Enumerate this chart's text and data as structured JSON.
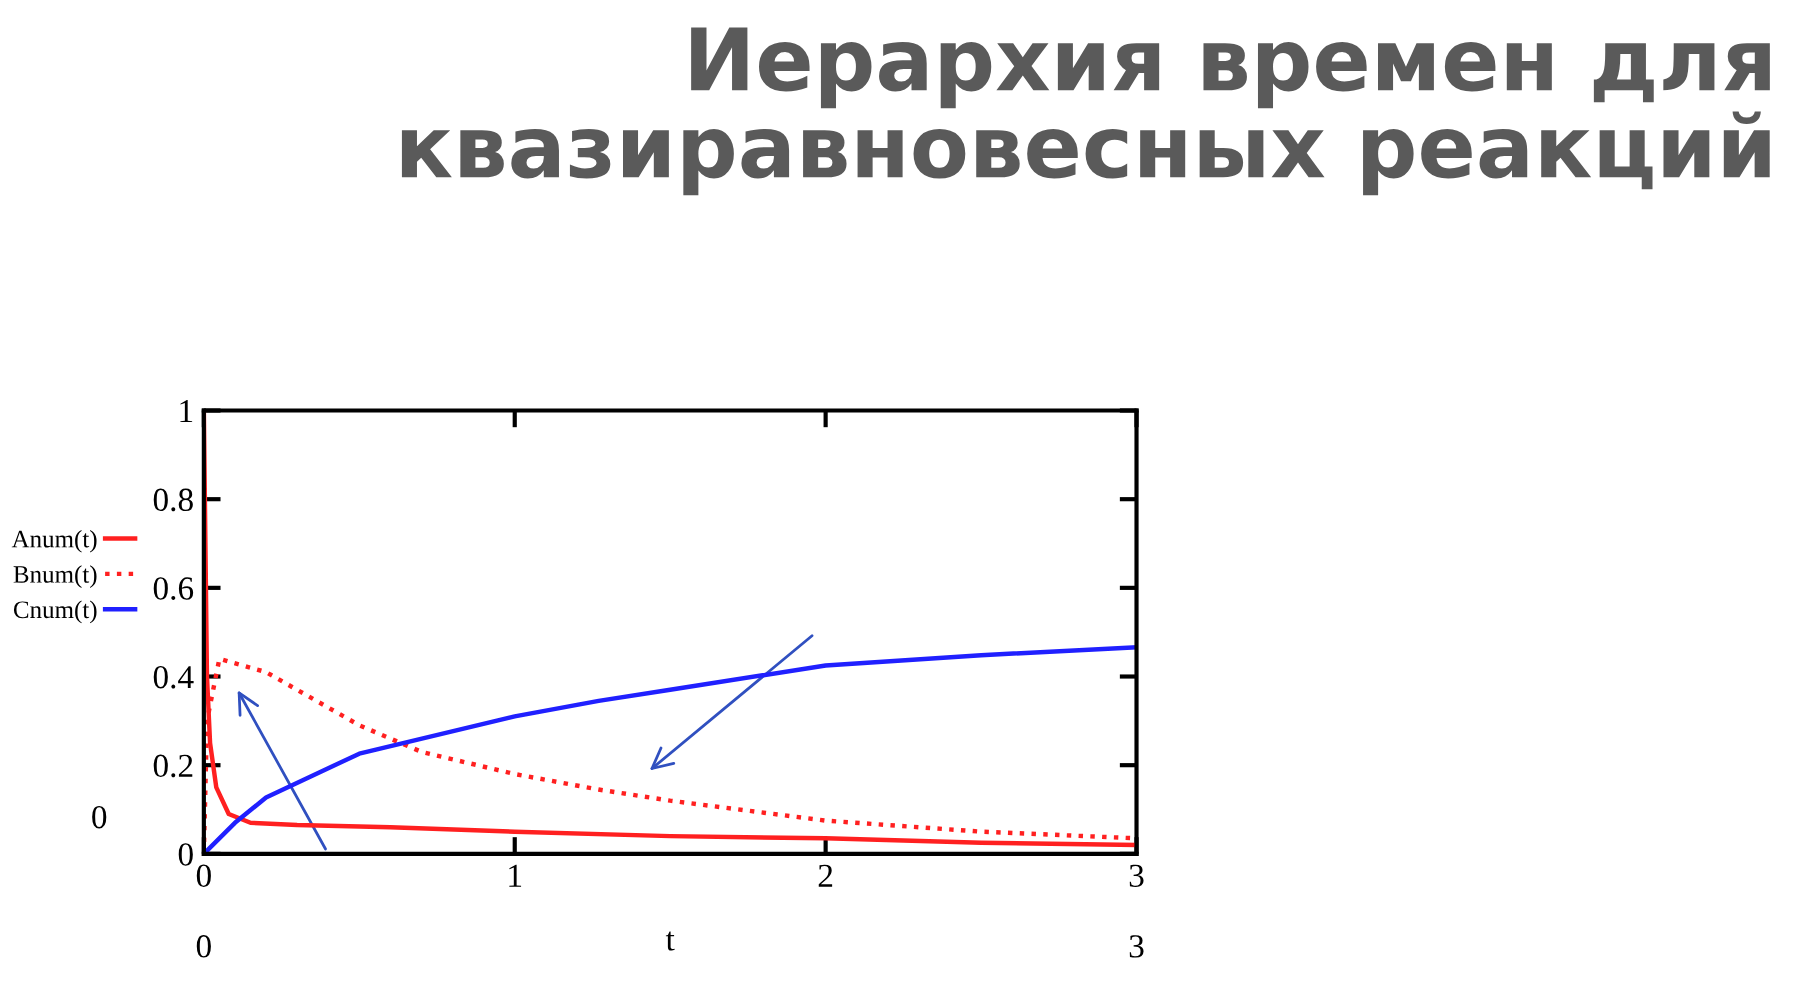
{
  "chart_data": {
    "type": "line",
    "title": "Иерархия времен для\nквазиравновесных реакций",
    "xlabel": "t",
    "annotations": [
      "0",
      "3",
      "0"
    ],
    "xlim": [
      0,
      3
    ],
    "xticks": [
      0,
      1,
      2,
      3
    ],
    "ylim": [
      0,
      1
    ],
    "yticks": [
      0,
      0.2,
      0.4,
      0.6,
      0.8,
      1
    ],
    "grid": false,
    "legend": "left",
    "marker": "none",
    "series": [
      {
        "name": "Anum(t)",
        "color": "#ff2020",
        "line_style": "solid",
        "x": [
          0,
          0.005,
          0.01,
          0.02,
          0.04,
          0.08,
          0.15,
          0.3,
          0.6,
          1,
          1.5,
          2,
          2.5,
          3
        ],
        "values": [
          1,
          0.7,
          0.4,
          0.25,
          0.15,
          0.09,
          0.07,
          0.065,
          0.06,
          0.05,
          0.04,
          0.035,
          0.025,
          0.02
        ]
      },
      {
        "name": "Bnum(t)",
        "color": "#ff2020",
        "line_style": "dotted",
        "x": [
          0,
          0.01,
          0.05,
          0.2,
          0.3,
          0.5,
          0.7,
          1,
          1.27,
          1.5,
          2,
          2.5,
          3
        ],
        "values": [
          0,
          0.3,
          0.44,
          0.41,
          0.37,
          0.29,
          0.23,
          0.18,
          0.145,
          0.12,
          0.075,
          0.05,
          0.035
        ]
      },
      {
        "name": "Cnum(t)",
        "color": "#2020ff",
        "line_style": "solid",
        "x": [
          0,
          0.1,
          0.2,
          0.5,
          1,
          1.27,
          1.5,
          2,
          2.5,
          3
        ],
        "values": [
          0,
          0.07,
          0.127,
          0.226,
          0.31,
          0.345,
          0.37,
          0.425,
          0.448,
          0.466
        ]
      }
    ]
  }
}
